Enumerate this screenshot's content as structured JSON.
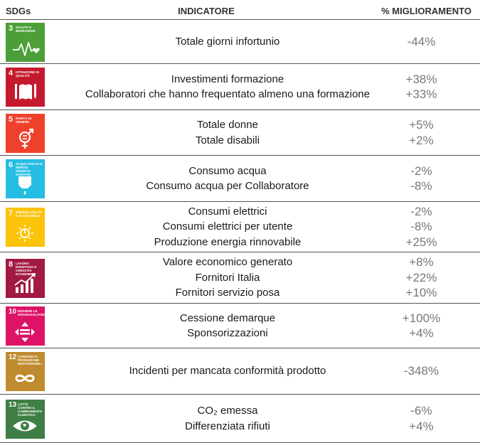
{
  "header": {
    "sdgs": "SDGs",
    "indicatore": "INDICATORE",
    "miglioramento": "% MIGLIORAMENTO"
  },
  "rows": [
    {
      "sdg_number": "3",
      "sdg_name": "SALUTE E BENESSERE",
      "color": "#4c9f38",
      "icon": "heartbeat-icon",
      "indicators": [
        "Totale giorni infortunio"
      ],
      "values": [
        "-44%"
      ]
    },
    {
      "sdg_number": "4",
      "sdg_name": "ISTRUZIONE DI QUALITÀ",
      "color": "#c5192d",
      "icon": "book-icon",
      "indicators": [
        "Investimenti formazione",
        "Collaboratori che hanno frequentato almeno una formazione"
      ],
      "values": [
        "+38%",
        "+33%"
      ]
    },
    {
      "sdg_number": "5",
      "sdg_name": "PARITÀ DI GENERE",
      "color": "#ef402b",
      "icon": "gender-equality-icon",
      "indicators": [
        "Totale donne",
        "Totale disabili"
      ],
      "values": [
        "+5%",
        "+2%"
      ]
    },
    {
      "sdg_number": "6",
      "sdg_name": "ACQUA PULITA E SERVIZI IGIENICO-SANITARI",
      "color": "#26bde2",
      "icon": "water-drop-icon",
      "indicators": [
        "Consumo acqua",
        "Consumo acqua per Collaboratore"
      ],
      "values": [
        "-2%",
        "-8%"
      ]
    },
    {
      "sdg_number": "7",
      "sdg_name": "ENERGIA PULITA E ACCESSIBILE",
      "color": "#fcc30b",
      "icon": "sun-power-icon",
      "indicators": [
        "Consumi elettrici",
        "Consumi elettrici per utente",
        "Produzione energia rinnovabile"
      ],
      "values": [
        "-2%",
        "-8%",
        "+25%"
      ]
    },
    {
      "sdg_number": "8",
      "sdg_name": "LAVORO DIGNITOSO E CRESCITA ECONOMICA",
      "color": "#a21942",
      "icon": "growth-chart-icon",
      "indicators": [
        "Valore economico generato",
        "Fornitori Italia",
        "Fornitori servizio posa"
      ],
      "values": [
        "+8%",
        "+22%",
        "+10%"
      ]
    },
    {
      "sdg_number": "10",
      "sdg_name": "RIDURRE LE DISUGUAGLIANZE",
      "color": "#dd1367",
      "icon": "equality-arrows-icon",
      "indicators": [
        "Cessione demarque",
        "Sponsorizzazioni"
      ],
      "values": [
        "+100%",
        "+4%"
      ]
    },
    {
      "sdg_number": "12",
      "sdg_name": "CONSUMO E PRODUZIONE RESPONSABILI",
      "color": "#bf8b2e",
      "icon": "infinity-icon",
      "indicators": [
        "Incidenti per mancata conformità prodotto"
      ],
      "values": [
        "-348%"
      ]
    },
    {
      "sdg_number": "13",
      "sdg_name": "LOTTA CONTRO IL CAMBIAMENTO CLIMATICO",
      "color": "#3f7e44",
      "icon": "eye-globe-icon",
      "indicators": [
        "CO₂ emessa",
        "Differenziata rifiuti"
      ],
      "values": [
        "-6%",
        "+4%"
      ]
    }
  ]
}
